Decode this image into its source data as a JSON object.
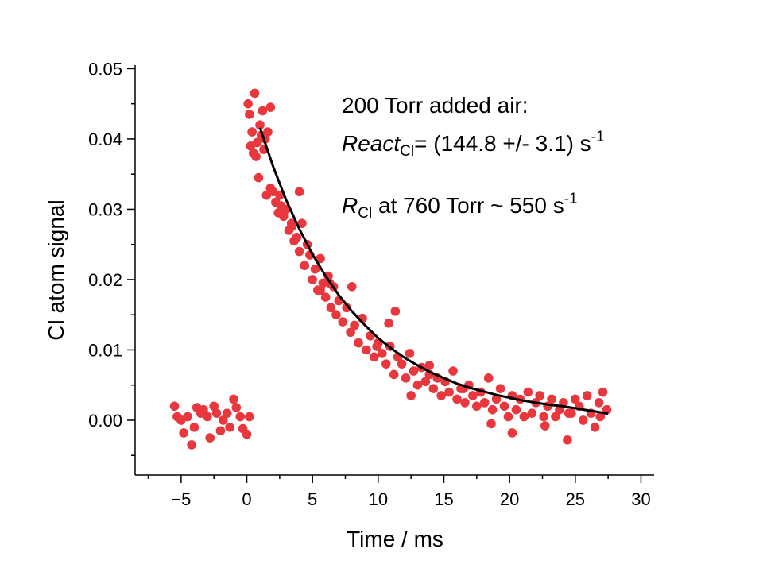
{
  "chart_data": {
    "type": "scatter",
    "title": "",
    "xlabel": "Time / ms",
    "ylabel": "Cl atom signal",
    "xlim": [
      -8.5,
      31
    ],
    "ylim": [
      -0.0078,
      0.0505
    ],
    "xticks": [
      -5,
      0,
      5,
      10,
      15,
      20,
      25,
      30
    ],
    "xtick_labels": [
      "−5",
      "0",
      "5",
      "10",
      "15",
      "20",
      "25",
      "30"
    ],
    "yticks": [
      0.0,
      0.01,
      0.02,
      0.03,
      0.04,
      0.05
    ],
    "ytick_labels": [
      "0.00",
      "0.01",
      "0.02",
      "0.03",
      "0.04",
      "0.05"
    ],
    "grid": false,
    "legend": "none",
    "colors": {
      "points": "#e8383d",
      "fit": "#000000"
    },
    "series": [
      {
        "kind": "scatter",
        "x": [
          -5.5,
          -5.3,
          -5.0,
          -4.8,
          -4.5,
          -4.2,
          -4.0,
          -3.8,
          -3.5,
          -3.3,
          -3.0,
          -2.8,
          -2.5,
          -2.3,
          -2.0,
          -1.8,
          -1.5,
          -1.3,
          -1.0,
          -0.8,
          -0.5,
          -0.3,
          0.0,
          0.2,
          0.1,
          0.2,
          0.3,
          0.4,
          0.5,
          0.6,
          0.7,
          0.8,
          0.9,
          1.0,
          1.1,
          1.2,
          1.3,
          1.4,
          1.5,
          1.6,
          1.8,
          2.0,
          2.2,
          2.4,
          2.6,
          2.8,
          3.0,
          3.2,
          3.4,
          3.6,
          3.8,
          4.0,
          4.2,
          4.4,
          4.6,
          4.8,
          5.0,
          5.2,
          5.4,
          5.6,
          5.8,
          6.0,
          6.2,
          6.4,
          6.6,
          6.8,
          7.0,
          7.3,
          7.6,
          7.9,
          8.2,
          8.5,
          8.8,
          9.1,
          9.4,
          9.7,
          10.0,
          10.3,
          10.6,
          10.9,
          11.2,
          11.5,
          11.8,
          12.1,
          12.4,
          12.7,
          13.0,
          13.3,
          13.6,
          13.9,
          14.2,
          14.5,
          14.8,
          15.1,
          15.4,
          15.7,
          16.0,
          16.3,
          16.6,
          16.9,
          17.2,
          17.5,
          17.8,
          18.1,
          18.4,
          18.7,
          19.0,
          19.3,
          19.6,
          19.9,
          20.2,
          20.5,
          20.8,
          21.1,
          21.4,
          21.7,
          22.0,
          22.3,
          22.6,
          22.9,
          23.2,
          23.5,
          23.8,
          24.1,
          24.4,
          24.7,
          25.0,
          25.3,
          25.6,
          25.9,
          26.2,
          26.5,
          26.8,
          27.1,
          27.4,
          1.8,
          2.5,
          3.4,
          4.0,
          5.6,
          6.3,
          8.0,
          9.9,
          10.8,
          11.3,
          12.5,
          13.9,
          16.5,
          18.6,
          20.2,
          22.7,
          24.5,
          26.9
        ],
        "y": [
          0.002,
          0.0005,
          0.0,
          -0.0018,
          0.0005,
          -0.0035,
          -0.001,
          0.0018,
          0.001,
          0.0015,
          0.0005,
          -0.0025,
          0.002,
          0.001,
          -0.0015,
          0.0,
          0.001,
          -0.001,
          0.003,
          0.0018,
          0.0005,
          -0.0012,
          -0.002,
          0.0005,
          0.045,
          0.0435,
          0.039,
          0.041,
          0.038,
          0.0465,
          0.0375,
          0.0395,
          0.0345,
          0.042,
          0.0405,
          0.044,
          0.0385,
          0.04,
          0.032,
          0.041,
          0.033,
          0.0325,
          0.031,
          0.0295,
          0.0305,
          0.029,
          0.03,
          0.027,
          0.0275,
          0.0255,
          0.026,
          0.024,
          0.028,
          0.022,
          0.025,
          0.0235,
          0.02,
          0.0215,
          0.0185,
          0.023,
          0.0195,
          0.0175,
          0.0205,
          0.016,
          0.019,
          0.015,
          0.017,
          0.014,
          0.016,
          0.0125,
          0.0135,
          0.011,
          0.0145,
          0.01,
          0.012,
          0.009,
          0.011,
          0.0095,
          0.008,
          0.0105,
          0.0065,
          0.009,
          0.008,
          0.006,
          0.0095,
          0.007,
          0.005,
          0.0075,
          0.0055,
          0.0065,
          0.0045,
          0.006,
          0.0035,
          0.0055,
          0.004,
          0.007,
          0.003,
          0.0045,
          0.0025,
          0.005,
          0.0035,
          0.002,
          0.004,
          0.0025,
          0.006,
          0.0015,
          0.003,
          0.0045,
          0.002,
          0.0005,
          0.0035,
          0.0015,
          0.003,
          0.0005,
          0.004,
          0.001,
          0.0025,
          0.0035,
          0.0005,
          0.002,
          0.003,
          0.0005,
          0.0015,
          0.0025,
          -0.0028,
          0.001,
          0.003,
          0.002,
          0.0,
          0.0035,
          0.001,
          -0.001,
          0.0025,
          0.004,
          0.0015,
          0.0445,
          0.032,
          0.028,
          0.0325,
          0.0185,
          0.0195,
          0.019,
          0.0105,
          0.0138,
          0.0155,
          0.0035,
          0.0078,
          0.0045,
          -0.0005,
          -0.0018,
          -0.0008,
          0.001,
          0.0005
        ]
      },
      {
        "kind": "fit-line",
        "x": [
          1.0,
          2.0,
          3.0,
          4.0,
          5.0,
          6.0,
          7.0,
          8.0,
          9.0,
          10.0,
          11.0,
          12.0,
          13.0,
          14.0,
          15.0,
          16.0,
          17.0,
          18.0,
          19.0,
          20.0,
          21.0,
          22.0,
          23.0,
          24.0,
          25.0,
          26.0,
          27.0,
          27.5
        ],
        "y": [
          0.0416,
          0.0361,
          0.0313,
          0.0272,
          0.0236,
          0.0205,
          0.0178,
          0.0155,
          0.0135,
          0.0117,
          0.0102,
          0.0089,
          0.0078,
          0.0068,
          0.006,
          0.0052,
          0.0046,
          0.0041,
          0.0036,
          0.0032,
          0.0028,
          0.0025,
          0.0022,
          0.002,
          0.0017,
          0.0014,
          0.0011,
          0.0009
        ]
      }
    ],
    "annotations": {
      "line1": "200 Torr added air:",
      "line2_italic": "React",
      "line2_sub": "Cl",
      "line2_rest": "= (144.8 +/- 3.1) s",
      "line2_sup": "-1",
      "line3_italic": "R",
      "line3_sub": "Cl",
      "line3_rest": " at 760 Torr ~ 550 s",
      "line3_sup": "-1"
    }
  }
}
